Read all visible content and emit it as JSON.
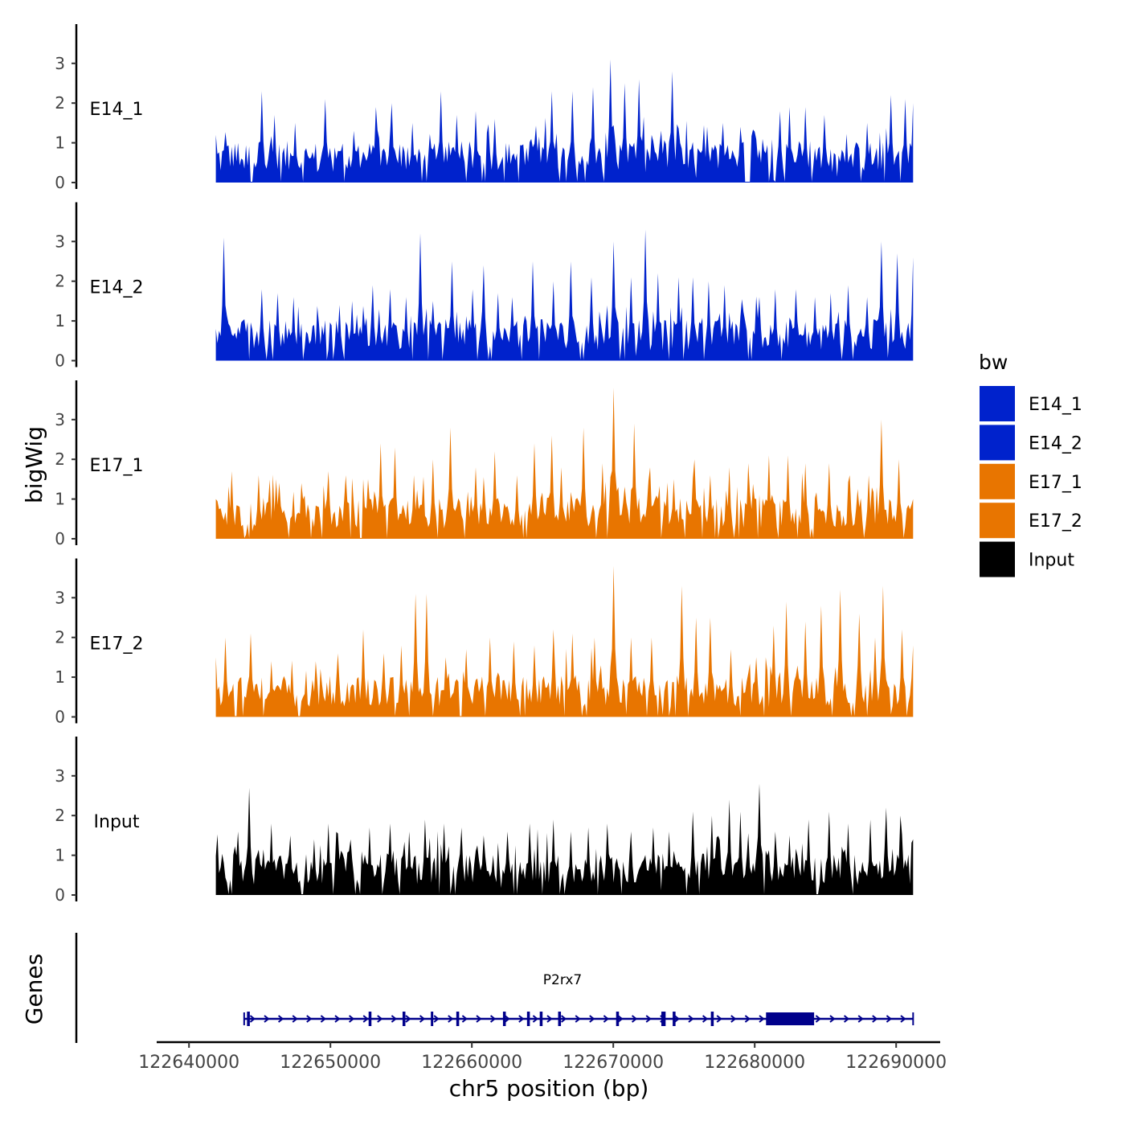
{
  "chart_data": {
    "type": "area",
    "ylabel": "bigWig",
    "xlabel": "chr5 position (bp)",
    "xlim": [
      122638000,
      122693000
    ],
    "x_ticks": [
      122640000,
      122650000,
      122660000,
      122670000,
      122680000,
      122690000
    ],
    "x_tick_labels": [
      "122640000",
      "122650000",
      "122660000",
      "122670000",
      "122680000",
      "122690000"
    ],
    "data_range": [
      122641900,
      122691200
    ],
    "ylim": [
      0,
      4
    ],
    "y_ticks": [
      0,
      1,
      2,
      3
    ],
    "y_tick_labels": [
      "0",
      "1",
      "2",
      "3"
    ],
    "legend": {
      "title": "bw",
      "position": "right",
      "entries": [
        {
          "label": "E14_1",
          "color": "#0022cc"
        },
        {
          "label": "E14_2",
          "color": "#0022cc"
        },
        {
          "label": "E17_1",
          "color": "#e87500"
        },
        {
          "label": "E17_2",
          "color": "#e87500"
        },
        {
          "label": "Input",
          "color": "#000000"
        }
      ]
    },
    "tracks": [
      {
        "name": "E14_1",
        "color": "#0022cc",
        "peaks": [
          [
            122641900,
            1.2
          ],
          [
            122643000,
            0.9
          ],
          [
            122645100,
            2.3
          ],
          [
            122646000,
            1.7
          ],
          [
            122647500,
            1.5
          ],
          [
            122649600,
            2.1
          ],
          [
            122651600,
            1.3
          ],
          [
            122653200,
            1.9
          ],
          [
            122654300,
            2.0
          ],
          [
            122655800,
            1.5
          ],
          [
            122657800,
            2.3
          ],
          [
            122658900,
            1.7
          ],
          [
            122660300,
            1.8
          ],
          [
            122661600,
            1.6
          ],
          [
            122664200,
            1.1
          ],
          [
            122665600,
            2.3
          ],
          [
            122667100,
            2.3
          ],
          [
            122668600,
            2.4
          ],
          [
            122669800,
            3.1
          ],
          [
            122670800,
            2.5
          ],
          [
            122671800,
            2.6
          ],
          [
            122672700,
            1.2
          ],
          [
            122674200,
            2.8
          ],
          [
            122676600,
            1.4
          ],
          [
            122677700,
            1.5
          ],
          [
            122679000,
            1.4
          ],
          [
            122680500,
            1.1
          ],
          [
            122681800,
            1.8
          ],
          [
            122682500,
            1.9
          ],
          [
            122683600,
            1.9
          ],
          [
            122684900,
            1.7
          ],
          [
            122686500,
            1.1
          ],
          [
            122687900,
            1.5
          ],
          [
            122689600,
            2.2
          ],
          [
            122690600,
            2.1
          ],
          [
            122691200,
            2.0
          ]
        ]
      },
      {
        "name": "E14_2",
        "color": "#0022cc",
        "peaks": [
          [
            122641900,
            0.8
          ],
          [
            122642500,
            3.1
          ],
          [
            122645100,
            1.8
          ],
          [
            122646300,
            1.7
          ],
          [
            122647400,
            1.6
          ],
          [
            122648800,
            0.9
          ],
          [
            122650600,
            1.4
          ],
          [
            122651500,
            1.5
          ],
          [
            122653000,
            1.9
          ],
          [
            122654200,
            1.8
          ],
          [
            122655400,
            1.6
          ],
          [
            122656400,
            3.2
          ],
          [
            122657300,
            1.5
          ],
          [
            122658600,
            2.5
          ],
          [
            122660000,
            1.8
          ],
          [
            122660800,
            2.4
          ],
          [
            122661800,
            1.7
          ],
          [
            122662900,
            1.6
          ],
          [
            122664300,
            2.5
          ],
          [
            122665800,
            2.0
          ],
          [
            122667000,
            2.5
          ],
          [
            122668400,
            2.1
          ],
          [
            122670000,
            3.0
          ],
          [
            122671300,
            2.1
          ],
          [
            122672300,
            3.3
          ],
          [
            122673200,
            2.2
          ],
          [
            122674600,
            2.1
          ],
          [
            122675600,
            2.1
          ],
          [
            122676700,
            2.0
          ],
          [
            122677900,
            1.9
          ],
          [
            122679200,
            1.2
          ],
          [
            122680300,
            1.6
          ],
          [
            122681500,
            1.8
          ],
          [
            122682900,
            1.8
          ],
          [
            122684200,
            1.6
          ],
          [
            122685400,
            1.7
          ],
          [
            122686600,
            1.9
          ],
          [
            122688000,
            1.6
          ],
          [
            122689000,
            3.0
          ],
          [
            122690100,
            2.7
          ],
          [
            122691200,
            2.6
          ]
        ]
      },
      {
        "name": "E17_1",
        "color": "#e87500",
        "peaks": [
          [
            122641900,
            1.0
          ],
          [
            122643000,
            1.7
          ],
          [
            122644900,
            1.6
          ],
          [
            122646200,
            1.5
          ],
          [
            122648000,
            1.4
          ],
          [
            122649800,
            1.7
          ],
          [
            122651100,
            1.6
          ],
          [
            122652700,
            1.5
          ],
          [
            122653500,
            2.4
          ],
          [
            122654600,
            2.3
          ],
          [
            122655900,
            1.6
          ],
          [
            122657200,
            2.0
          ],
          [
            122658500,
            2.8
          ],
          [
            122660300,
            1.8
          ],
          [
            122661600,
            2.2
          ],
          [
            122663200,
            1.6
          ],
          [
            122664400,
            2.4
          ],
          [
            122665600,
            2.6
          ],
          [
            122666300,
            1.8
          ],
          [
            122667900,
            2.8
          ],
          [
            122669200,
            1.9
          ],
          [
            122670000,
            3.8
          ],
          [
            122671500,
            2.9
          ],
          [
            122672600,
            1.8
          ],
          [
            122674300,
            1.5
          ],
          [
            122675700,
            2.0
          ],
          [
            122676900,
            1.6
          ],
          [
            122678200,
            1.8
          ],
          [
            122679500,
            1.9
          ],
          [
            122681000,
            2.1
          ],
          [
            122682300,
            2.1
          ],
          [
            122683600,
            1.9
          ],
          [
            122685300,
            1.9
          ],
          [
            122686700,
            1.6
          ],
          [
            122688100,
            1.6
          ],
          [
            122689000,
            3.0
          ],
          [
            122690200,
            2.0
          ],
          [
            122691200,
            1.0
          ]
        ]
      },
      {
        "name": "E17_2",
        "color": "#e87500",
        "peaks": [
          [
            122641900,
            1.5
          ],
          [
            122642600,
            2.0
          ],
          [
            122644400,
            2.1
          ],
          [
            122645800,
            1.4
          ],
          [
            122647300,
            1.3
          ],
          [
            122649000,
            1.4
          ],
          [
            122650500,
            1.6
          ],
          [
            122652300,
            2.2
          ],
          [
            122653800,
            1.6
          ],
          [
            122655000,
            1.8
          ],
          [
            122656000,
            3.1
          ],
          [
            122656800,
            3.1
          ],
          [
            122658200,
            1.5
          ],
          [
            122659600,
            1.7
          ],
          [
            122661300,
            2.0
          ],
          [
            122663000,
            1.9
          ],
          [
            122664400,
            1.8
          ],
          [
            122665800,
            2.2
          ],
          [
            122667100,
            2.1
          ],
          [
            122668700,
            2.0
          ],
          [
            122670000,
            3.8
          ],
          [
            122671200,
            2.0
          ],
          [
            122672700,
            2.0
          ],
          [
            122674800,
            3.3
          ],
          [
            122675900,
            2.5
          ],
          [
            122676900,
            2.5
          ],
          [
            122678300,
            1.7
          ],
          [
            122680100,
            1.5
          ],
          [
            122681300,
            2.3
          ],
          [
            122682200,
            2.9
          ],
          [
            122683600,
            2.4
          ],
          [
            122684700,
            2.8
          ],
          [
            122686000,
            3.2
          ],
          [
            122687400,
            2.6
          ],
          [
            122688500,
            2.0
          ],
          [
            122689100,
            3.3
          ],
          [
            122690400,
            2.2
          ],
          [
            122691200,
            1.8
          ]
        ]
      },
      {
        "name": "Input",
        "color": "#000000",
        "peaks": [
          [
            122641900,
            0.7
          ],
          [
            122643500,
            1.6
          ],
          [
            122644300,
            2.7
          ],
          [
            122645800,
            1.8
          ],
          [
            122647200,
            1.5
          ],
          [
            122648800,
            1.4
          ],
          [
            122649900,
            1.8
          ],
          [
            122651400,
            1.4
          ],
          [
            122652800,
            1.7
          ],
          [
            122654200,
            1.8
          ],
          [
            122655600,
            1.6
          ],
          [
            122656700,
            1.9
          ],
          [
            122658000,
            1.8
          ],
          [
            122659300,
            1.7
          ],
          [
            122660800,
            1.5
          ],
          [
            122662500,
            1.6
          ],
          [
            122664100,
            1.8
          ],
          [
            122665800,
            1.9
          ],
          [
            122667000,
            1.6
          ],
          [
            122668200,
            1.7
          ],
          [
            122669600,
            1.8
          ],
          [
            122671200,
            1.6
          ],
          [
            122672800,
            1.7
          ],
          [
            122674000,
            1.6
          ],
          [
            122675600,
            2.1
          ],
          [
            122677000,
            2.0
          ],
          [
            122678200,
            2.4
          ],
          [
            122679000,
            2.1
          ],
          [
            122680300,
            2.8
          ],
          [
            122681400,
            1.6
          ],
          [
            122682500,
            1.5
          ],
          [
            122683800,
            1.9
          ],
          [
            122685300,
            2.1
          ],
          [
            122686600,
            1.8
          ],
          [
            122688200,
            1.9
          ],
          [
            122689300,
            2.2
          ],
          [
            122690300,
            2.0
          ],
          [
            122691200,
            1.4
          ]
        ]
      }
    ],
    "genes": {
      "label": "Genes",
      "gene_name": "P2rx7",
      "start": 122643900,
      "end": 122691200,
      "strand": "+",
      "exons": [
        [
          122644100,
          122644300
        ],
        [
          122652700,
          122652900
        ],
        [
          122655100,
          122655300
        ],
        [
          122657100,
          122657200
        ],
        [
          122658900,
          122659100
        ],
        [
          122662200,
          122662400
        ],
        [
          122663900,
          122664100
        ],
        [
          122664800,
          122665000
        ],
        [
          122666100,
          122666300
        ],
        [
          122670200,
          122670400
        ],
        [
          122673400,
          122673700
        ],
        [
          122674200,
          122674400
        ],
        [
          122676900,
          122677100
        ],
        [
          122680800,
          122684200
        ]
      ],
      "color": "#00008b"
    }
  }
}
